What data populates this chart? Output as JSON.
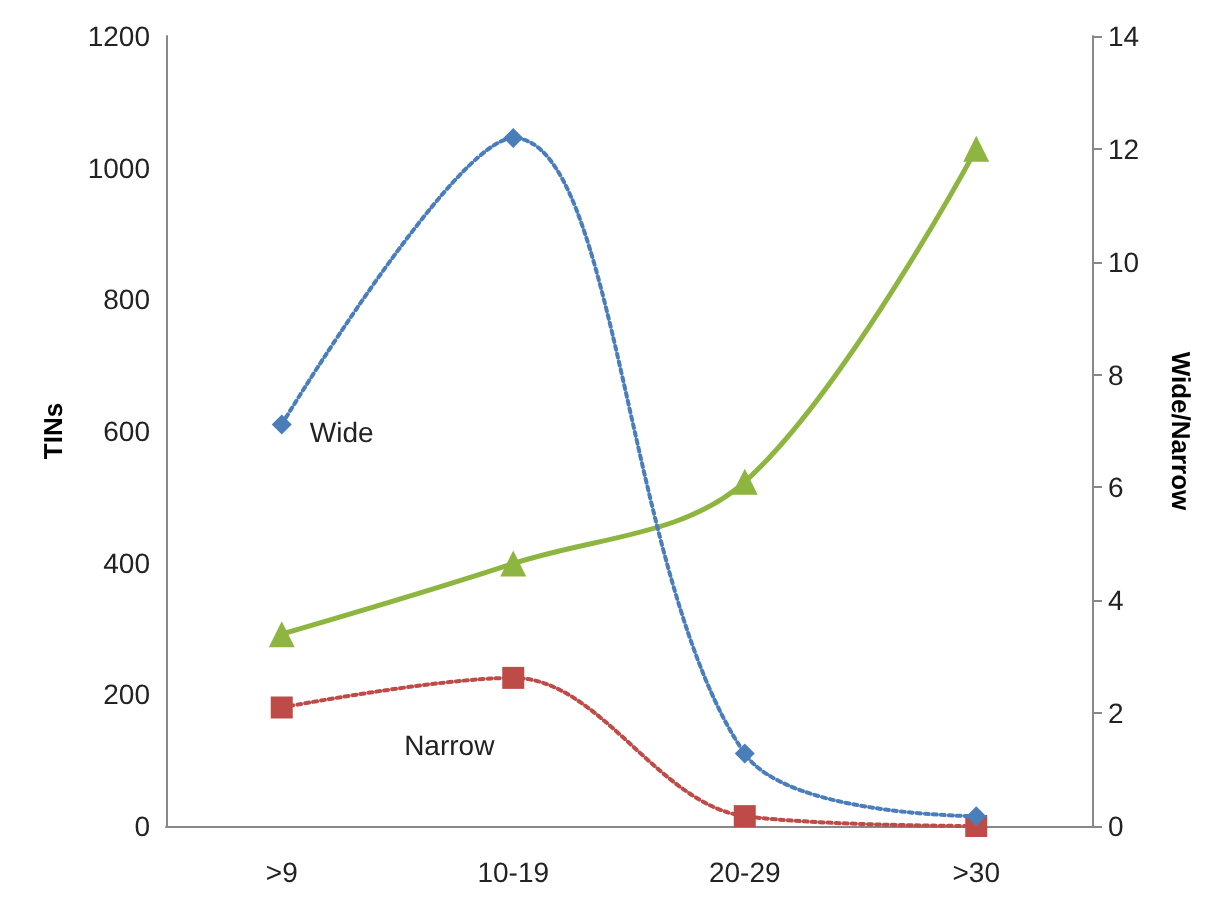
{
  "chart_data": {
    "type": "line",
    "ylabel": "TINs",
    "y2label": "Wide/Narrow",
    "categories": [
      ">9",
      "10-19",
      "20-29",
      ">30"
    ],
    "series": [
      {
        "name": "Wide",
        "color": "#4a7ebb",
        "values": [
          610,
          1045,
          110,
          15
        ],
        "marker": "diamond",
        "line_style": "dotted"
      },
      {
        "name": "Narrow",
        "color": "#be4b48",
        "values": [
          180,
          225,
          15,
          0
        ],
        "marker": "square",
        "line_style": "dotted"
      },
      {
        "color": "#8db53f",
        "values": [
          3.4,
          4.65,
          6.1,
          12
        ],
        "axis": "y2",
        "marker": "triangle",
        "line_style": "solid"
      }
    ],
    "ylim": [
      0,
      1200
    ],
    "yticks": [
      0,
      200,
      400,
      600,
      800,
      1000,
      1200
    ],
    "y2lim": [
      0,
      14
    ],
    "y2ticks": [
      0,
      2,
      4,
      6,
      8,
      10,
      12,
      14
    ],
    "grid": false,
    "legend": false
  }
}
